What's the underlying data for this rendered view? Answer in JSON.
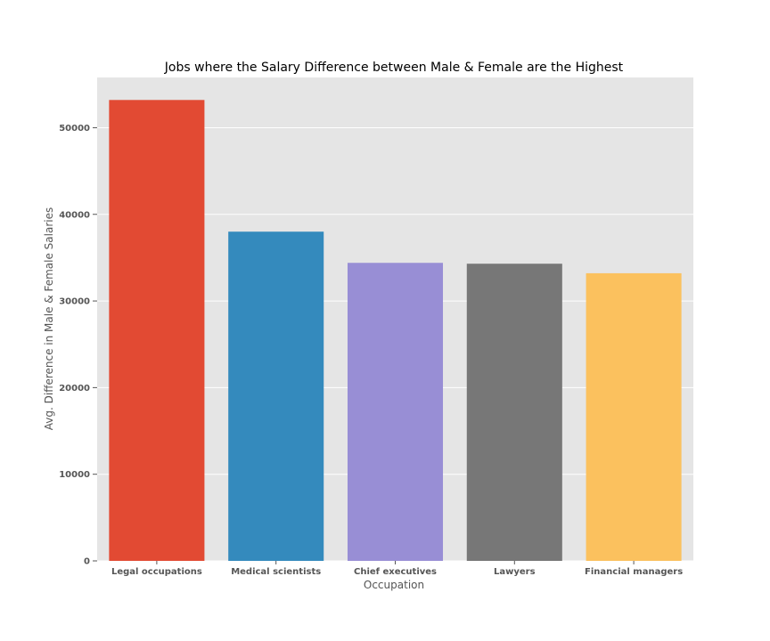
{
  "chart_data": {
    "type": "bar",
    "title": "Jobs where the Salary Difference between Male & Female are the Highest",
    "xlabel": "Occupation",
    "ylabel": "Avg. Difference in Male & Female Salaries",
    "categories": [
      "Legal occupations",
      "Medical scientists",
      "Chief executives",
      "Lawyers",
      "Financial managers"
    ],
    "values": [
      53200,
      38000,
      34400,
      34300,
      33200
    ],
    "colors": [
      "#E24A33",
      "#348ABD",
      "#988ED5",
      "#777777",
      "#FBC15E"
    ],
    "yticks": [
      0,
      10000,
      20000,
      30000,
      40000,
      50000
    ],
    "ytick_labels": [
      "0",
      "10000",
      "20000",
      "30000",
      "40000",
      "50000"
    ],
    "ylim": [
      0,
      55800
    ],
    "grid": true,
    "background": "#E5E5E5",
    "grid_color": "#FFFFFF"
  }
}
